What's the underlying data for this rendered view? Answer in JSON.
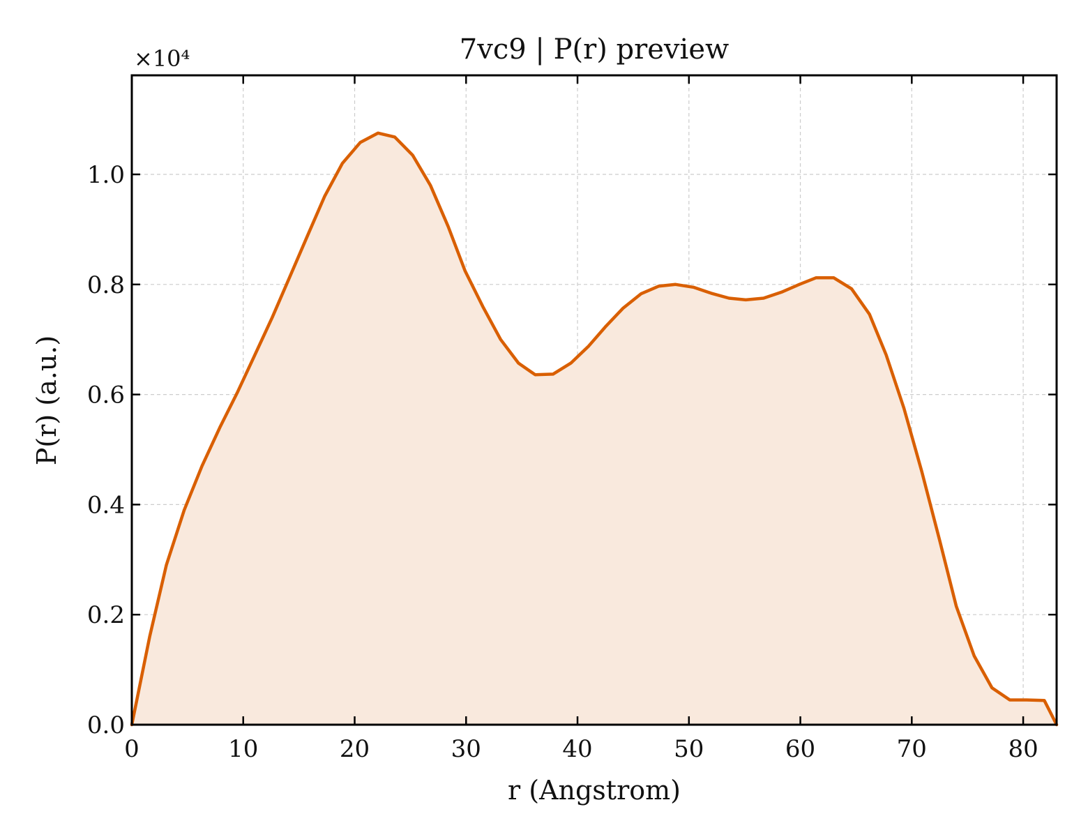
{
  "chart_data": {
    "type": "area",
    "title": "7vc9 | P(r) preview",
    "xlabel": "r (Angstrom)",
    "ylabel": "P(r) (a.u.)",
    "y_multiplier_label": "×10⁴",
    "xlim": [
      0,
      83
    ],
    "ylim": [
      0,
      1.18
    ],
    "x_ticks": [
      0,
      10,
      20,
      30,
      40,
      50,
      60,
      70,
      80
    ],
    "y_ticks": [
      0.0,
      0.2,
      0.4,
      0.6,
      0.8,
      1.0
    ],
    "x_tick_labels": [
      "0",
      "10",
      "20",
      "30",
      "40",
      "50",
      "60",
      "70",
      "80"
    ],
    "y_tick_labels": [
      "0.0",
      "0.2",
      "0.4",
      "0.6",
      "0.8",
      "1.0"
    ],
    "grid": true,
    "line_color": "#d95f02",
    "fill_color": "#f9e9dd",
    "series": [
      {
        "x": [
          0,
          1.6,
          3.1,
          4.7,
          6.3,
          7.9,
          9.5,
          11.0,
          12.6,
          14.2,
          15.8,
          17.3,
          18.9,
          20.5,
          22.1,
          23.6,
          25.2,
          26.8,
          28.4,
          29.9,
          31.5,
          33.1,
          34.7,
          36.2,
          37.8,
          39.4,
          41.0,
          42.5,
          44.1,
          45.7,
          47.3,
          48.8,
          50.4,
          52.0,
          53.6,
          55.1,
          56.7,
          58.3,
          59.9,
          61.4,
          63.0,
          64.6,
          66.2,
          67.7,
          69.3,
          70.9,
          72.5,
          74.0,
          75.6,
          77.2,
          78.8,
          80.3,
          81.9,
          83.0
        ],
        "y": [
          0.0,
          0.16,
          0.29,
          0.39,
          0.47,
          0.54,
          0.605,
          0.67,
          0.74,
          0.815,
          0.89,
          0.96,
          1.02,
          1.058,
          1.075,
          1.068,
          1.035,
          0.98,
          0.905,
          0.825,
          0.76,
          0.7,
          0.657,
          0.636,
          0.637,
          0.657,
          0.688,
          0.723,
          0.757,
          0.783,
          0.797,
          0.8,
          0.795,
          0.784,
          0.775,
          0.772,
          0.775,
          0.786,
          0.8,
          0.812,
          0.812,
          0.792,
          0.746,
          0.672,
          0.575,
          0.46,
          0.335,
          0.215,
          0.125,
          0.067,
          0.045,
          0.045,
          0.044,
          0.0
        ]
      }
    ]
  }
}
